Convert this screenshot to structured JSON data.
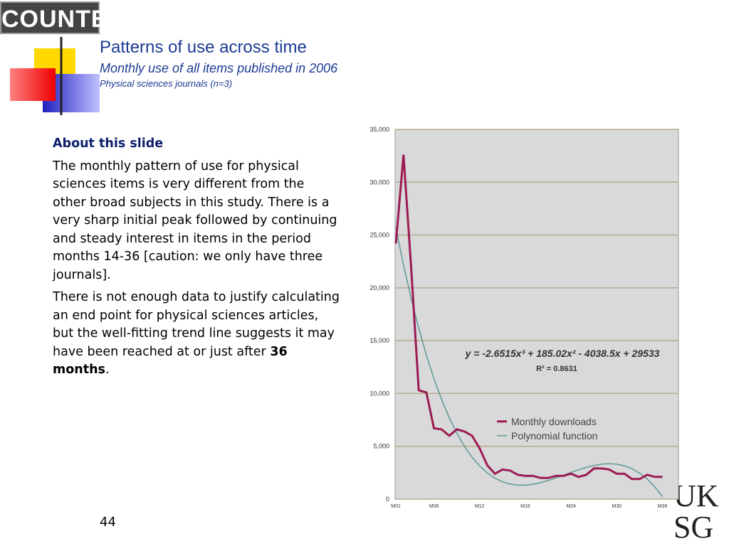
{
  "slide": {
    "logo": "COUNTER",
    "title": "Patterns of use across time",
    "subtitle": "Monthly use of all items published in 2006",
    "subsubtitle": "Physical sciences journals (n=3)",
    "heading": "About this slide",
    "paragraph_1": "The monthly pattern of use for physical sciences items is very different from the other broad subjects in this study.  There is a very sharp initial peak followed by continuing and steady interest in items in the period months 14-36 [caution: we only have three journals].",
    "paragraph_2": [
      "There is not enough data to justify calculating an end point for physical sciences articles, but the well-fitting trend line suggests it may have been reached at or just after ",
      "36 months",
      "."
    ],
    "page_number": "44",
    "corner_logo": [
      "UK",
      "SG"
    ]
  },
  "chart_data": {
    "type": "line",
    "categories": [
      "M01",
      null,
      null,
      null,
      null,
      "M06",
      null,
      null,
      null,
      null,
      null,
      "M12",
      null,
      null,
      null,
      null,
      null,
      "M18",
      null,
      null,
      null,
      null,
      null,
      "M24",
      null,
      null,
      null,
      null,
      null,
      "M30",
      null,
      null,
      null,
      null,
      null,
      "M36"
    ],
    "series": [
      {
        "name": "Monthly downloads",
        "color": "#9b1b52",
        "values": [
          24200,
          32600,
          22000,
          10300,
          10100,
          6700,
          6600,
          6000,
          6600,
          6400,
          6000,
          4800,
          3200,
          2400,
          2800,
          2700,
          2300,
          2200,
          2200,
          2000,
          2000,
          2200,
          2200,
          2400,
          2100,
          2300,
          2900,
          2900,
          2800,
          2400,
          2400,
          1900,
          1900,
          2300,
          2100,
          2100
        ]
      },
      {
        "name": "Polynomial function",
        "color": "#5e9898",
        "values": [
          25677,
          22175,
          19011,
          16170,
          13635,
          11390,
          9420,
          7709,
          6240,
          4999,
          3968,
          3132,
          2476,
          1982,
          1636,
          1422,
          1322,
          1323,
          1407,
          1559,
          1763,
          2003,
          2263,
          2527,
          2778,
          3002,
          3183,
          3304,
          3349,
          3305,
          3149,
          2870,
          2457,
          1895,
          1152,
          223
        ]
      }
    ],
    "ylim": [
      0,
      35000
    ],
    "yticks": [
      0,
      {
        "value": 5000,
        "label": "5,000"
      },
      {
        "value": 10000,
        "label": "10,000"
      },
      {
        "value": 15000,
        "label": "15,000"
      },
      {
        "value": 20000,
        "label": "20,000"
      },
      {
        "value": 25000,
        "label": "25,000"
      },
      {
        "value": 30000,
        "label": "30,000"
      },
      {
        "value": 35000,
        "label": "35,000"
      }
    ],
    "grid": true,
    "legend": "center right",
    "annotations": [
      "y = -2.6515x³ + 185.02x² - 4038.5x + 29533",
      "R² = 0.8631"
    ]
  }
}
